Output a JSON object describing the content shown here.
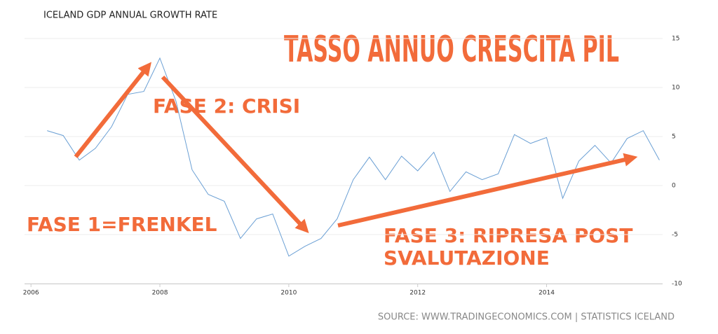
{
  "chart_data": {
    "type": "line",
    "title": "ICELAND GDP ANNUAL GROWTH RATE",
    "headline": "TASSO ANNUO CRESCITA PIL",
    "annotations": [
      "FASE 1=FRENKEL",
      "FASE 2: CRISI",
      "FASE 3: RIPRESA POST",
      "SVALUTAZIONE"
    ],
    "source": "SOURCE: WWW.TRADINGECONOMICS.COM | STATISTICS ICELAND",
    "x": [
      2006.25,
      2006.5,
      2006.75,
      2007,
      2007.25,
      2007.5,
      2007.75,
      2008,
      2008.25,
      2008.5,
      2008.75,
      2009,
      2009.25,
      2009.5,
      2009.75,
      2010,
      2010.25,
      2010.5,
      2010.75,
      2011,
      2011.25,
      2011.5,
      2011.75,
      2012,
      2012.25,
      2012.5,
      2012.75,
      2013,
      2013.25,
      2013.5,
      2013.75,
      2014,
      2014.25,
      2014.5,
      2014.75,
      2015,
      2015.25,
      2015.5,
      2015.75
    ],
    "values": [
      5.6,
      5.1,
      2.6,
      3.8,
      6.0,
      9.3,
      9.6,
      13.0,
      8.6,
      1.6,
      -0.9,
      -1.6,
      -5.4,
      -3.4,
      -2.9,
      -7.2,
      -6.2,
      -5.4,
      -3.4,
      0.6,
      2.9,
      0.6,
      3.0,
      1.5,
      3.4,
      -0.6,
      1.4,
      0.6,
      1.2,
      5.2,
      4.3,
      4.9,
      -1.3,
      2.5,
      4.1,
      2.3,
      4.8,
      5.6,
      2.6
    ],
    "color": "#6a9fd4",
    "xlim": [
      2005.9,
      2015.8
    ],
    "xticks": [
      2006,
      2008,
      2010,
      2012,
      2014
    ],
    "ylim": [
      -10,
      16
    ],
    "yticks": [
      -10,
      -5,
      0,
      5,
      10,
      15
    ],
    "grid": true
  }
}
